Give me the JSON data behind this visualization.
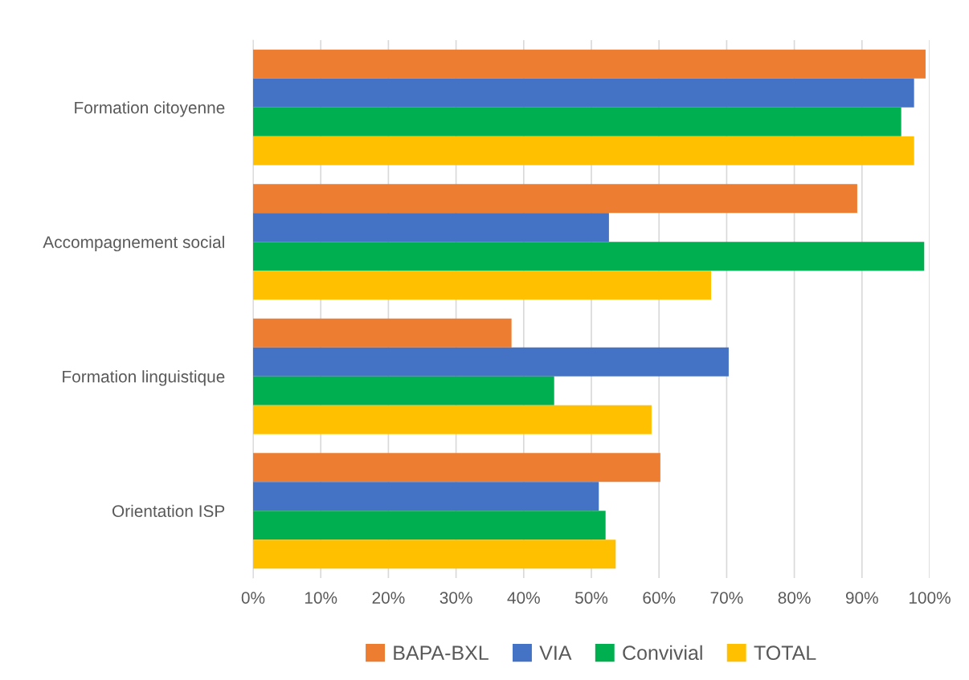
{
  "chart_data": {
    "type": "bar",
    "orientation": "horizontal",
    "categories": [
      "Formation citoyenne",
      "Accompagnement social",
      "Formation linguistique",
      "Orientation ISP"
    ],
    "series": [
      {
        "name": "BAPA-BXL",
        "color": "#ed7d31",
        "values": [
          99.4,
          89.3,
          38.2,
          60.2
        ]
      },
      {
        "name": "VIA",
        "color": "#4472c4",
        "values": [
          97.7,
          52.6,
          70.3,
          51.1
        ]
      },
      {
        "name": "Convivial",
        "color": "#00b050",
        "values": [
          95.8,
          99.2,
          44.5,
          52.1
        ]
      },
      {
        "name": "TOTAL",
        "color": "#ffc000",
        "values": [
          97.7,
          67.7,
          58.9,
          53.6
        ]
      }
    ],
    "xlim": [
      0,
      100
    ],
    "xticks": [
      {
        "value": 0,
        "label": "0%"
      },
      {
        "value": 10,
        "label": "10%"
      },
      {
        "value": 20,
        "label": "20%"
      },
      {
        "value": 30,
        "label": "30%"
      },
      {
        "value": 40,
        "label": "40%"
      },
      {
        "value": 50,
        "label": "50%"
      },
      {
        "value": 60,
        "label": "60%"
      },
      {
        "value": 70,
        "label": "70%"
      },
      {
        "value": 80,
        "label": "80%"
      },
      {
        "value": 90,
        "label": "90%"
      },
      {
        "value": 100,
        "label": "100%"
      }
    ],
    "grid": "x",
    "legend": "bottom"
  }
}
